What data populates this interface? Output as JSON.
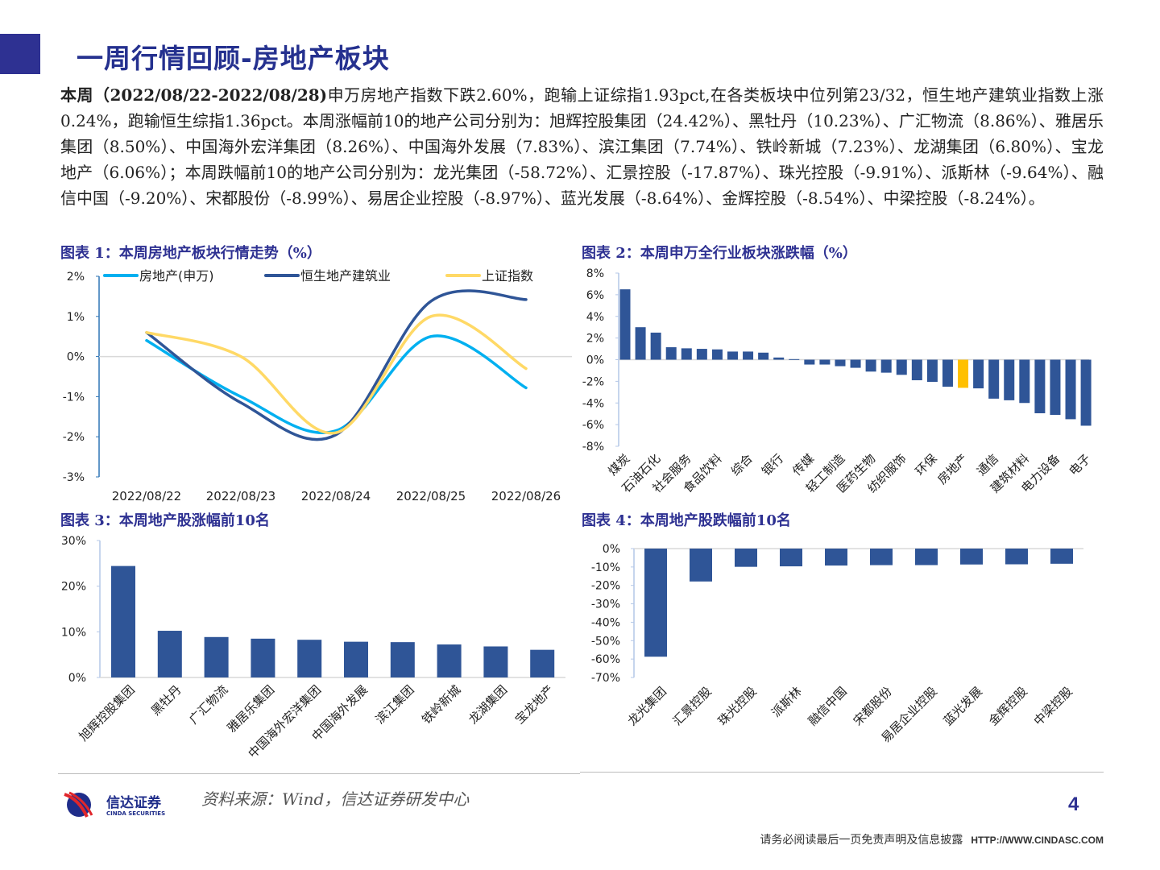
{
  "header": {
    "title": "一周行情回顾-房地产板块",
    "accent_color": "#2e3192"
  },
  "summary": {
    "bold_prefix": "本周（2022/08/22-2022/08/28)",
    "text": "申万房地产指数下跌2.60%，跑输上证综指1.93pct,在各类板块中位列第23/32，恒生地产建筑业指数上涨0.24%，跑输恒生综指1.36pct。本周涨幅前10的地产公司分别为：旭辉控股集团（24.42%）、黑牡丹（10.23%）、广汇物流（8.86%）、雅居乐集团（8.50%）、中国海外宏洋集团（8.26%）、中国海外发展（7.83%）、滨江集团（7.74%）、铁岭新城（7.23%）、龙湖集团（6.80%）、宝龙地产（6.06%）；本周跌幅前10的地产公司分别为：龙光集团（-58.72%）、汇景控股（-17.87%）、珠光控股（-9.91%）、派斯林（-9.64%）、融信中国（-9.20%）、宋都股份（-8.99%）、易居企业控股（-8.97%）、蓝光发展（-8.64%）、金辉控股（-8.54%）、中梁控股（-8.24%）。"
  },
  "chart_titles": [
    "图表 1：本周房地产板块行情走势（%）",
    "图表 2：本周申万全行业板块涨跌幅（%）",
    "图表 3：本周地产股涨幅前10名",
    "图表 4：本周地产股跌幅前10名"
  ],
  "chart_data": [
    {
      "type": "line",
      "categories": [
        "2022/08/22",
        "2022/08/23",
        "2022/08/24",
        "2022/08/25",
        "2022/08/26"
      ],
      "ylim": [
        -3,
        2
      ],
      "yticks": [
        "2%",
        "1%",
        "0%",
        "-1%",
        "-2%",
        "-3%"
      ],
      "legend": "top",
      "series": [
        {
          "name": "房地产(申万)",
          "color": "#00b0f0",
          "values": [
            0.4,
            -1.0,
            -1.85,
            0.5,
            -0.78
          ]
        },
        {
          "name": "恒生地产建筑业",
          "color": "#2f5597",
          "values": [
            0.6,
            -1.15,
            -1.95,
            1.38,
            1.42
          ]
        },
        {
          "name": "上证指数",
          "color": "#ffd966",
          "values": [
            0.6,
            0.0,
            -1.9,
            1.0,
            -0.3
          ]
        }
      ]
    },
    {
      "type": "bar",
      "categories": [
        "煤炭",
        "",
        "石油石化",
        "",
        "社会服务",
        "",
        "食品饮料",
        "",
        "综合",
        "",
        "银行",
        "",
        "传媒",
        "",
        "轻工制造",
        "",
        "医药生物",
        "",
        "纺织服饰",
        "",
        "环保",
        "",
        "房地产",
        "",
        "通信",
        "",
        "建筑材料",
        "",
        "电力设备",
        "",
        "电子"
      ],
      "values": [
        6.5,
        3.0,
        2.5,
        1.15,
        1.05,
        1.0,
        0.95,
        0.75,
        0.75,
        0.65,
        0.2,
        0.05,
        -0.45,
        -0.45,
        -0.6,
        -0.75,
        -1.1,
        -1.2,
        -1.4,
        -1.9,
        -2.05,
        -2.5,
        -2.6,
        -2.65,
        -3.6,
        -3.75,
        -4.0,
        -4.95,
        -5.1,
        -5.5,
        -6.1
      ],
      "ylim": [
        -8,
        8
      ],
      "yticks": [
        "8%",
        "6%",
        "4%",
        "2%",
        "0%",
        "-2%",
        "-4%",
        "-6%",
        "-8%"
      ],
      "bar_color": "#2f5597",
      "highlight": {
        "index": 22,
        "color": "#ffc000"
      }
    },
    {
      "type": "bar",
      "categories": [
        "旭辉控股集团",
        "黑牡丹",
        "广汇物流",
        "雅居乐集团",
        "中国海外宏洋集团",
        "中国海外发展",
        "滨江集团",
        "铁岭新城",
        "龙湖集团",
        "宝龙地产"
      ],
      "values": [
        24.42,
        10.23,
        8.86,
        8.5,
        8.26,
        7.83,
        7.74,
        7.23,
        6.8,
        6.06
      ],
      "ylim": [
        0,
        30
      ],
      "yticks": [
        "30%",
        "20%",
        "10%",
        "0%"
      ],
      "bar_color": "#2f5597"
    },
    {
      "type": "bar",
      "categories": [
        "龙光集团",
        "汇景控股",
        "珠光控股",
        "派斯林",
        "融信中国",
        "宋都股份",
        "易居企业控股",
        "蓝光发展",
        "金辉控股",
        "中梁控股"
      ],
      "values": [
        -58.72,
        -17.87,
        -9.91,
        -9.64,
        -9.2,
        -8.99,
        -8.97,
        -8.64,
        -8.54,
        -8.24
      ],
      "ylim": [
        -70,
        0
      ],
      "yticks": [
        "0%",
        "-10%",
        "-20%",
        "-30%",
        "-40%",
        "-50%",
        "-60%",
        "-70%"
      ],
      "bar_color": "#2f5597"
    }
  ],
  "footer": {
    "logo_cn": "信达证券",
    "logo_en": "CINDA SECURITIES",
    "source": "资料来源：Wind，信达证券研发中心",
    "page_number": "4",
    "disclaimer": "请务必阅读最后一页免责声明及信息披露",
    "url": "HTTP://WWW.CINDASC.COM"
  }
}
